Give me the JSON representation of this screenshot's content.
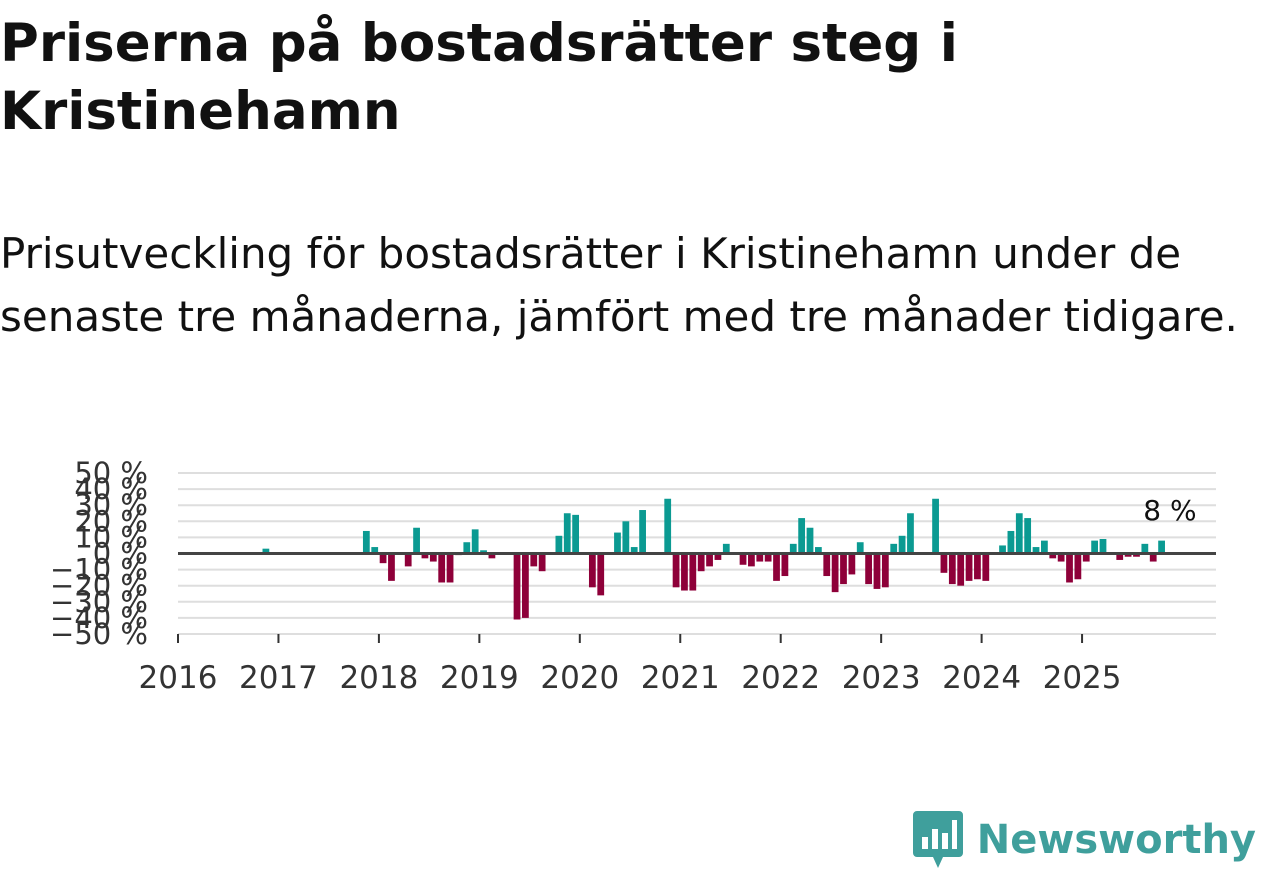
{
  "header": {
    "title": "Priserna på bostadsrätter steg i Kristinehamn",
    "subtitle": "Prisutveckling för bostadsrätter i Kristinehamn under de senaste tre månaderna, jämfört med tre månader tidigare."
  },
  "brand": {
    "name": "Newsworthy",
    "icon": "newsworthy-logo-icon",
    "color": "#3f9f9c"
  },
  "chart_data": {
    "type": "bar",
    "title": "Priserna på bostadsrätter steg i Kristinehamn",
    "xlabel": "",
    "ylabel": "",
    "ylim": [
      -50,
      50
    ],
    "y_ticks": [
      -50,
      -40,
      -30,
      -20,
      -10,
      0,
      10,
      20,
      30,
      40,
      50
    ],
    "y_tick_labels": [
      "−50 %",
      "−40 %",
      "−30 %",
      "−20 %",
      "−10 %",
      "0 %",
      "10 %",
      "20 %",
      "30 %",
      "40 %",
      "50 %"
    ],
    "x_ticks": [
      "2016",
      "2017",
      "2018",
      "2019",
      "2020",
      "2021",
      "2022",
      "2023",
      "2024",
      "2025"
    ],
    "x_start": "2016-01",
    "x_end": "2026-05",
    "colors": {
      "positive": "#0b9a92",
      "negative": "#8e0039"
    },
    "annotation": {
      "label": "8 %",
      "month": "2025-11"
    },
    "series": [
      {
        "name": "Prisutveckling",
        "points": [
          {
            "month": "2016-11",
            "value": 3
          },
          {
            "month": "2017-11",
            "value": 14
          },
          {
            "month": "2017-12",
            "value": 4
          },
          {
            "month": "2018-01",
            "value": -6
          },
          {
            "month": "2018-02",
            "value": -17
          },
          {
            "month": "2018-04",
            "value": -8
          },
          {
            "month": "2018-05",
            "value": 16
          },
          {
            "month": "2018-06",
            "value": -3
          },
          {
            "month": "2018-07",
            "value": -5
          },
          {
            "month": "2018-08",
            "value": -18
          },
          {
            "month": "2018-09",
            "value": -18
          },
          {
            "month": "2018-10",
            "value": -1
          },
          {
            "month": "2018-11",
            "value": 7
          },
          {
            "month": "2018-12",
            "value": 15
          },
          {
            "month": "2019-01",
            "value": 2
          },
          {
            "month": "2019-02",
            "value": -3
          },
          {
            "month": "2019-05",
            "value": -41
          },
          {
            "month": "2019-06",
            "value": -40
          },
          {
            "month": "2019-07",
            "value": -8
          },
          {
            "month": "2019-08",
            "value": -11
          },
          {
            "month": "2019-10",
            "value": 11
          },
          {
            "month": "2019-11",
            "value": 25
          },
          {
            "month": "2019-12",
            "value": 24
          },
          {
            "month": "2020-02",
            "value": -21
          },
          {
            "month": "2020-03",
            "value": -26
          },
          {
            "month": "2020-05",
            "value": 13
          },
          {
            "month": "2020-06",
            "value": 20
          },
          {
            "month": "2020-07",
            "value": 4
          },
          {
            "month": "2020-08",
            "value": 27
          },
          {
            "month": "2020-11",
            "value": 34
          },
          {
            "month": "2020-12",
            "value": -21
          },
          {
            "month": "2021-01",
            "value": -23
          },
          {
            "month": "2021-02",
            "value": -23
          },
          {
            "month": "2021-03",
            "value": -11
          },
          {
            "month": "2021-04",
            "value": -8
          },
          {
            "month": "2021-05",
            "value": -4
          },
          {
            "month": "2021-06",
            "value": 6
          },
          {
            "month": "2021-08",
            "value": -7
          },
          {
            "month": "2021-09",
            "value": -8
          },
          {
            "month": "2021-10",
            "value": -5
          },
          {
            "month": "2021-11",
            "value": -5
          },
          {
            "month": "2021-12",
            "value": -17
          },
          {
            "month": "2022-01",
            "value": -14
          },
          {
            "month": "2022-02",
            "value": 6
          },
          {
            "month": "2022-03",
            "value": 22
          },
          {
            "month": "2022-04",
            "value": 16
          },
          {
            "month": "2022-05",
            "value": 4
          },
          {
            "month": "2022-06",
            "value": -14
          },
          {
            "month": "2022-07",
            "value": -24
          },
          {
            "month": "2022-08",
            "value": -19
          },
          {
            "month": "2022-09",
            "value": -13
          },
          {
            "month": "2022-10",
            "value": 7
          },
          {
            "month": "2022-11",
            "value": -19
          },
          {
            "month": "2022-12",
            "value": -22
          },
          {
            "month": "2023-01",
            "value": -21
          },
          {
            "month": "2023-02",
            "value": 6
          },
          {
            "month": "2023-03",
            "value": 11
          },
          {
            "month": "2023-04",
            "value": 25
          },
          {
            "month": "2023-07",
            "value": 34
          },
          {
            "month": "2023-08",
            "value": -12
          },
          {
            "month": "2023-09",
            "value": -19
          },
          {
            "month": "2023-10",
            "value": -20
          },
          {
            "month": "2023-11",
            "value": -17
          },
          {
            "month": "2023-12",
            "value": -16
          },
          {
            "month": "2024-01",
            "value": -17
          },
          {
            "month": "2024-03",
            "value": 5
          },
          {
            "month": "2024-04",
            "value": 14
          },
          {
            "month": "2024-05",
            "value": 25
          },
          {
            "month": "2024-06",
            "value": 22
          },
          {
            "month": "2024-07",
            "value": 4
          },
          {
            "month": "2024-08",
            "value": 8
          },
          {
            "month": "2024-09",
            "value": -3
          },
          {
            "month": "2024-10",
            "value": -5
          },
          {
            "month": "2024-11",
            "value": -18
          },
          {
            "month": "2024-12",
            "value": -16
          },
          {
            "month": "2025-01",
            "value": -5
          },
          {
            "month": "2025-02",
            "value": 8
          },
          {
            "month": "2025-03",
            "value": 9
          },
          {
            "month": "2025-05",
            "value": -4
          },
          {
            "month": "2025-06",
            "value": -2
          },
          {
            "month": "2025-07",
            "value": -2
          },
          {
            "month": "2025-08",
            "value": 6
          },
          {
            "month": "2025-09",
            "value": -5
          },
          {
            "month": "2025-10",
            "value": 8
          }
        ]
      }
    ]
  }
}
